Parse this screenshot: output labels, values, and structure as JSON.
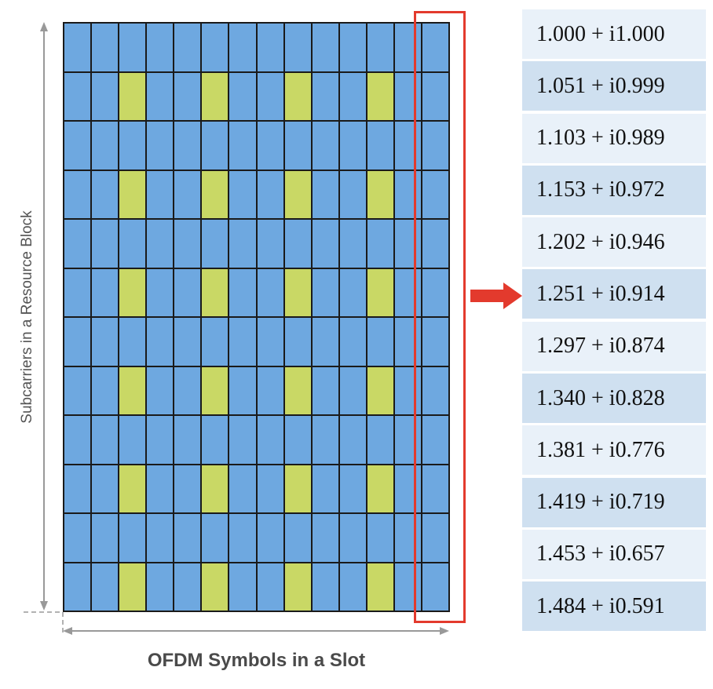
{
  "diagram": {
    "rows": 12,
    "cols": 14,
    "pilot_rows": [
      1,
      3,
      5,
      7,
      9,
      11
    ],
    "pilot_cols": [
      2,
      5,
      8,
      11
    ],
    "colors": {
      "data": "#6ea8e0",
      "pilot": "#c9d865",
      "highlight": "#e33a2d",
      "axis": "#999999"
    },
    "y_axis_label": "Subcarriers in a Resource Block",
    "x_axis_label": "OFDM Symbols in a Slot"
  },
  "values": [
    "1.000 + i1.000",
    "1.051 + i0.999",
    "1.103 + i0.989",
    "1.153 + i0.972",
    "1.202 + i0.946",
    "1.251 + i0.914",
    "1.297 + i0.874",
    "1.340 + i0.828",
    "1.381 + i0.776",
    "1.419 + i0.719",
    "1.453 + i0.657",
    "1.484 + i0.591"
  ]
}
